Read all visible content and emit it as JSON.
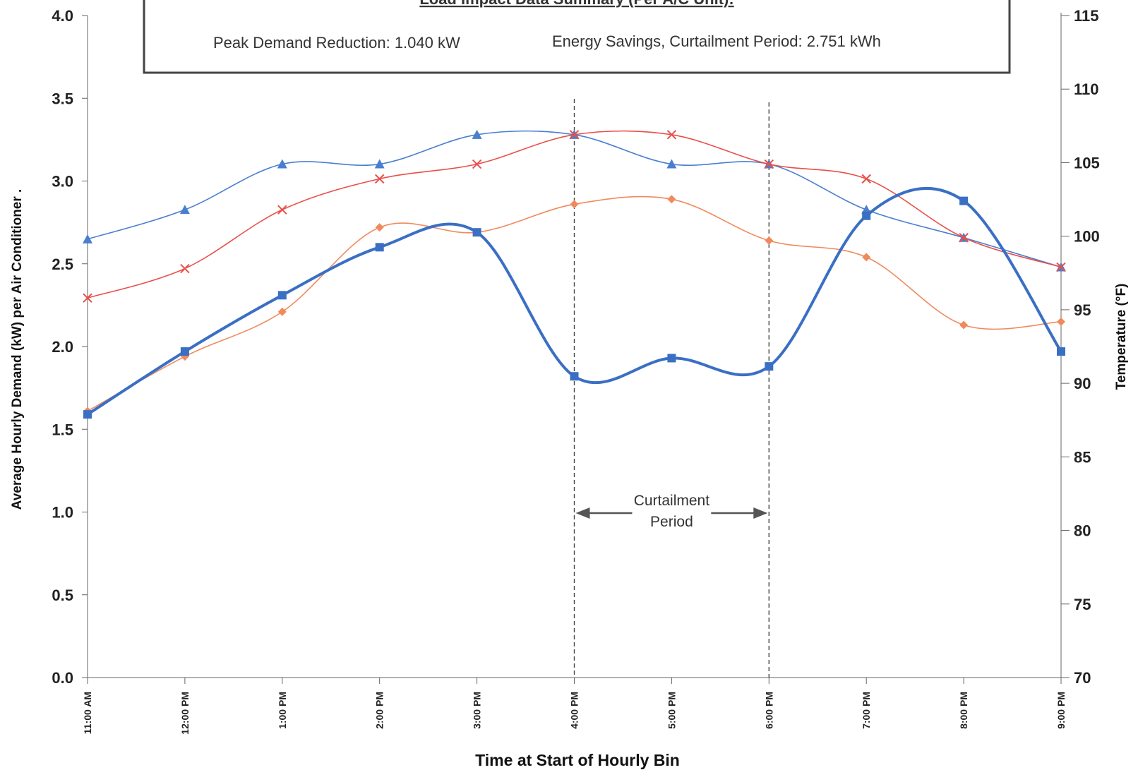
{
  "chart_data": {
    "type": "line",
    "summary_box": {
      "title": "Load Impact Data Summary (Per A/C Unit):",
      "peak_demand": "Peak Demand Reduction: 1.040 kW",
      "energy_savings": "Energy Savings, Curtailment Period:  2.751 kWh"
    },
    "categories": [
      "11:00 AM",
      "12:00 PM",
      "1:00 PM",
      "2:00 PM",
      "3:00 PM",
      "4:00 PM",
      "5:00 PM",
      "6:00 PM",
      "7:00 PM",
      "8:00 PM",
      "9:00 PM"
    ],
    "xlabel": "Time at Start of Hourly Bin",
    "ylabel": "Average Hourly Demand (kW)  per Air Conditioner .",
    "y2label": "Temperature (°F)",
    "ylim": [
      0,
      4.0
    ],
    "y2lim": [
      70,
      115
    ],
    "yticks": [
      "0.0",
      "0.5",
      "1.0",
      "1.5",
      "2.0",
      "2.5",
      "3.0",
      "3.5",
      "4.0"
    ],
    "y2ticks": [
      "70",
      "75",
      "80",
      "85",
      "90",
      "95",
      "100",
      "105",
      "110",
      "115"
    ],
    "series": [
      {
        "axis": "left",
        "marker": "square",
        "color": "#3a6fc4",
        "width": 4,
        "values": [
          1.59,
          1.97,
          2.31,
          2.6,
          2.69,
          1.82,
          1.93,
          1.88,
          2.79,
          2.88,
          1.97
        ]
      },
      {
        "axis": "left",
        "marker": "diamond",
        "color": "#f08a5d",
        "width": 1.6,
        "values": [
          1.61,
          1.94,
          2.21,
          2.72,
          2.69,
          2.86,
          2.89,
          2.64,
          2.54,
          2.13,
          2.15
        ]
      },
      {
        "axis": "right",
        "marker": "triangle",
        "color": "#4a7fd0",
        "width": 1.6,
        "values": [
          99.8,
          101.8,
          104.9,
          104.9,
          106.9,
          106.9,
          104.9,
          104.9,
          101.8,
          99.9,
          97.9
        ]
      },
      {
        "axis": "right",
        "marker": "x",
        "color": "#e8504a",
        "width": 1.6,
        "values": [
          95.8,
          97.8,
          101.8,
          103.9,
          104.9,
          106.9,
          106.9,
          104.9,
          103.9,
          99.9,
          97.9
        ]
      }
    ],
    "annotation": {
      "line1": "Curtailment",
      "line2": "Period",
      "from": "4:00 PM",
      "to": "6:00 PM"
    }
  }
}
